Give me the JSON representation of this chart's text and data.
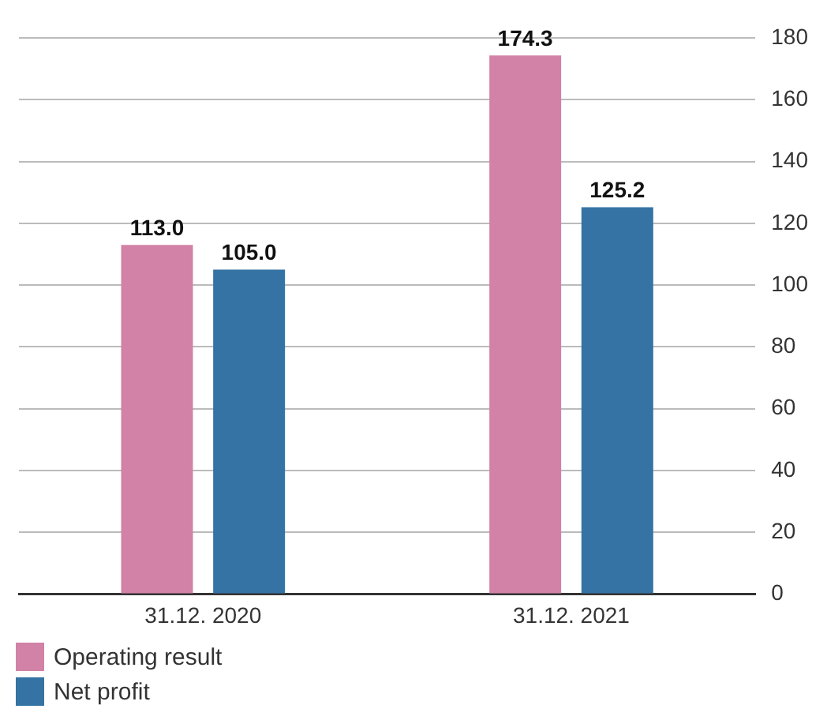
{
  "chart_data": {
    "type": "bar",
    "categories": [
      "31.12. 2020",
      "31.12. 2021"
    ],
    "series": [
      {
        "name": "Operating result",
        "color": "#d282a6",
        "values": [
          113.0,
          174.3
        ],
        "value_labels": [
          "113.0",
          "174.3"
        ]
      },
      {
        "name": "Net profit",
        "color": "#3473a3",
        "values": [
          105.0,
          125.2
        ],
        "value_labels": [
          "105.0",
          "125.2"
        ]
      }
    ],
    "ylim": [
      0,
      180
    ],
    "yticks": [
      0,
      20,
      40,
      60,
      80,
      100,
      120,
      140,
      160,
      180
    ],
    "grid": "y",
    "legend": "bottom left"
  }
}
